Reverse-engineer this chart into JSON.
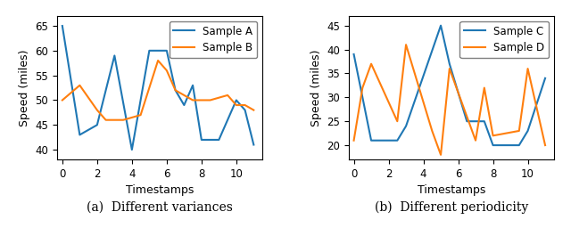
{
  "plot_a": {
    "xlabel": "Timestamps",
    "ylabel": "Speed (miles)",
    "ylim": [
      38,
      67
    ],
    "xlim": [
      -0.3,
      11.5
    ],
    "sample_a_x": [
      0.0,
      1.0,
      2.0,
      3.0,
      4.0,
      5.0,
      6.0,
      6.5,
      7.0,
      7.5,
      8.0,
      9.0,
      10.0,
      10.5,
      11.0
    ],
    "sample_a_y": [
      65,
      43,
      45,
      59,
      40,
      60,
      60,
      52,
      49,
      53,
      42,
      42,
      50,
      48,
      41
    ],
    "sample_b_x": [
      0.0,
      1.0,
      2.0,
      2.5,
      3.5,
      4.5,
      5.5,
      6.0,
      6.5,
      7.5,
      8.5,
      9.5,
      10.0,
      10.5,
      11.0
    ],
    "sample_b_y": [
      50,
      53,
      48,
      46,
      46,
      47,
      58,
      56,
      52,
      50,
      50,
      51,
      49,
      49,
      48
    ],
    "color_a": "#1f77b4",
    "color_b": "#ff7f0e",
    "legend_labels": [
      "Sample A",
      "Sample B"
    ]
  },
  "plot_b": {
    "xlabel": "Timestamps",
    "ylabel": "Speed (miles)",
    "ylim": [
      17,
      47
    ],
    "xlim": [
      -0.3,
      11.5
    ],
    "sample_c_x": [
      0.0,
      1.0,
      2.5,
      3.0,
      5.0,
      5.5,
      6.5,
      7.5,
      8.0,
      9.5,
      10.0,
      11.0
    ],
    "sample_c_y": [
      39,
      21,
      21,
      24,
      45,
      37,
      25,
      25,
      20,
      20,
      23,
      34
    ],
    "sample_d_x": [
      0.0,
      0.5,
      1.0,
      2.5,
      3.0,
      4.5,
      5.0,
      5.5,
      7.0,
      7.5,
      8.0,
      9.5,
      10.0,
      11.0
    ],
    "sample_d_y": [
      21,
      32,
      37,
      25,
      41,
      23,
      18,
      36,
      21,
      32,
      22,
      23,
      36,
      20
    ],
    "color_c": "#1f77b4",
    "color_d": "#ff7f0e",
    "legend_labels": [
      "Sample C",
      "Sample D"
    ]
  },
  "caption_a": "(a)  Different variances",
  "caption_b": "(b)  Different periodicity",
  "figsize": [
    6.4,
    2.56
  ],
  "dpi": 100
}
